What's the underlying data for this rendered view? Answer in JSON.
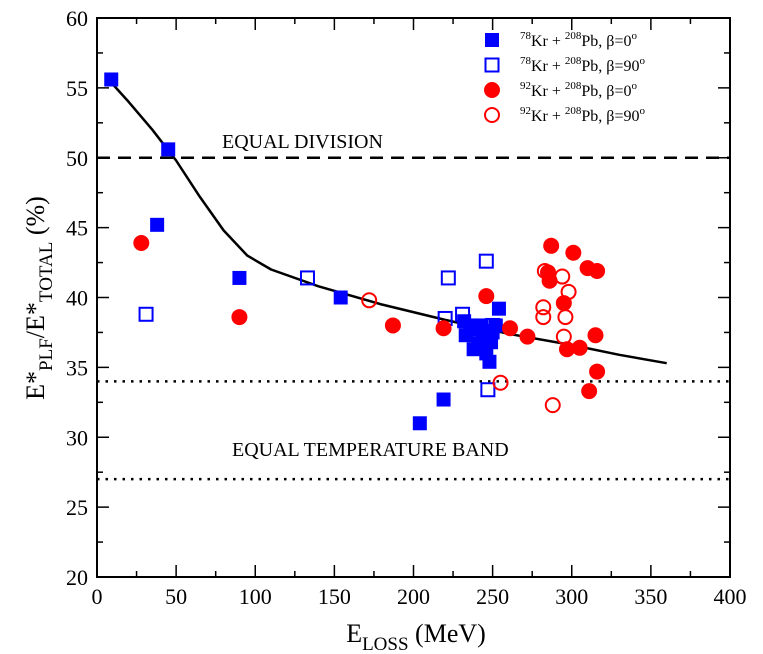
{
  "chart_data": {
    "type": "scatter",
    "xlabel": {
      "main": "E",
      "sub": "LOSS",
      "unit": " (MeV)"
    },
    "ylabel": {
      "e1": "E*",
      "sub1": "PLF",
      "slash": "/",
      "e2": "E*",
      "sub2": "TOTAL",
      "unit": " (%)"
    },
    "xlim": [
      0,
      400
    ],
    "ylim": [
      20,
      60
    ],
    "xticks": [
      0,
      50,
      100,
      150,
      200,
      250,
      300,
      350,
      400
    ],
    "yticks": [
      20,
      25,
      30,
      35,
      40,
      45,
      50,
      55,
      60
    ],
    "grid": false,
    "legend_position": "top-right",
    "annotations": {
      "equal_division": "EQUAL DIVISION",
      "equal_temperature": "EQUAL TEMPERATURE BAND"
    },
    "reference_lines": [
      {
        "name": "equal-division",
        "y": 50,
        "style": "dashed"
      },
      {
        "name": "equal-temperature-upper",
        "y": 34,
        "style": "dotted"
      },
      {
        "name": "equal-temperature-lower",
        "y": 27,
        "style": "dotted"
      }
    ],
    "curve": {
      "name": "trend-curve",
      "x": [
        8,
        20,
        35,
        50,
        65,
        80,
        95,
        110,
        140,
        180,
        220,
        260,
        300,
        330,
        360
      ],
      "y": [
        55.5,
        54.0,
        52.0,
        49.8,
        47.2,
        44.8,
        43.0,
        42.0,
        40.8,
        39.5,
        38.4,
        37.4,
        36.6,
        35.9,
        35.3
      ]
    },
    "series": [
      {
        "name": "kr78-beta0",
        "label": {
          "a": "78",
          "b": "Kr + ",
          "c": "208",
          "d": "Pb, β=0",
          "e": "o"
        },
        "marker": "square-filled",
        "color": "#0000ff",
        "points": [
          [
            9,
            55.6
          ],
          [
            45,
            50.6
          ],
          [
            38,
            45.2
          ],
          [
            90,
            41.4
          ],
          [
            154,
            40.0
          ],
          [
            204,
            31.0
          ],
          [
            219,
            32.7
          ],
          [
            232,
            38.3
          ],
          [
            233,
            37.3
          ],
          [
            236,
            38.0
          ],
          [
            238,
            36.3
          ],
          [
            240,
            37.7
          ],
          [
            241,
            36.7
          ],
          [
            243,
            38.0
          ],
          [
            244,
            37.0
          ],
          [
            246,
            36.0
          ],
          [
            248,
            35.4
          ],
          [
            249,
            36.8
          ],
          [
            250,
            37.5
          ],
          [
            252,
            38.0
          ],
          [
            254,
            39.2
          ],
          [
            245,
            37.6
          ],
          [
            239,
            37.9
          ]
        ]
      },
      {
        "name": "kr78-beta90",
        "label": {
          "a": "78",
          "b": "Kr + ",
          "c": "208",
          "d": "Pb, β=90",
          "e": "o"
        },
        "marker": "square-open",
        "color": "#0000ff",
        "points": [
          [
            31,
            38.8
          ],
          [
            133,
            41.4
          ],
          [
            220,
            38.5
          ],
          [
            222,
            41.4
          ],
          [
            231,
            38.8
          ],
          [
            246,
            42.6
          ],
          [
            247,
            33.4
          ],
          [
            250,
            38.0
          ]
        ]
      },
      {
        "name": "kr92-beta0",
        "label": {
          "a": "92",
          "b": "Kr + ",
          "c": "208",
          "d": "Pb, β=0",
          "e": "o"
        },
        "marker": "circle-filled",
        "color": "#ff0000",
        "points": [
          [
            28,
            43.9
          ],
          [
            90,
            38.6
          ],
          [
            187,
            38.0
          ],
          [
            219,
            37.8
          ],
          [
            246,
            40.1
          ],
          [
            261,
            37.8
          ],
          [
            272,
            37.2
          ],
          [
            286,
            41.2
          ],
          [
            287,
            43.7
          ],
          [
            295,
            39.6
          ],
          [
            297,
            36.3
          ],
          [
            301,
            43.2
          ],
          [
            305,
            36.4
          ],
          [
            310,
            42.1
          ],
          [
            311,
            33.3
          ],
          [
            315,
            37.3
          ],
          [
            316,
            34.7
          ],
          [
            316,
            41.9
          ],
          [
            285,
            41.8
          ]
        ]
      },
      {
        "name": "kr92-beta90",
        "label": {
          "a": "92",
          "b": "Kr + ",
          "c": "208",
          "d": "Pb, β=90",
          "e": "o"
        },
        "marker": "circle-open",
        "color": "#ff0000",
        "points": [
          [
            172,
            39.8
          ],
          [
            255,
            33.9
          ],
          [
            282,
            39.3
          ],
          [
            282,
            38.6
          ],
          [
            283,
            41.9
          ],
          [
            288,
            32.3
          ],
          [
            294,
            41.5
          ],
          [
            295,
            37.2
          ],
          [
            296,
            38.6
          ],
          [
            298,
            40.4
          ]
        ]
      }
    ]
  }
}
